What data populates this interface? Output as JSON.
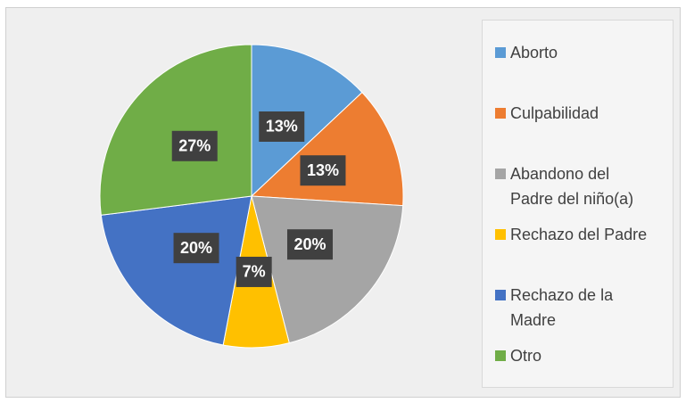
{
  "chart_data": {
    "type": "pie",
    "categories": [
      "Aborto",
      "Culpabilidad",
      "Abandono del Padre del niño(a)",
      "Rechazo del Padre",
      "Rechazo de la Madre",
      "Otro"
    ],
    "values": [
      13,
      13,
      20,
      7,
      20,
      27
    ],
    "value_labels": [
      "13%",
      "13%",
      "20%",
      "7%",
      "20%",
      "27%"
    ],
    "colors": [
      "#5b9bd5",
      "#ed7d31",
      "#a5a5a5",
      "#ffc000",
      "#4472c4",
      "#70ad47"
    ],
    "legend": "right"
  }
}
